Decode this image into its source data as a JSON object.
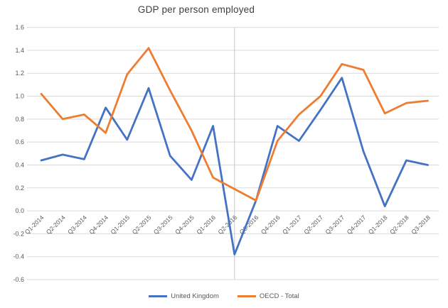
{
  "chart_data": {
    "type": "line",
    "title": "GDP per person employed",
    "categories": [
      "Q1-2014",
      "Q2-2014",
      "Q3-2014",
      "Q4-2014",
      "Q1-2015",
      "Q2-2015",
      "Q3-2015",
      "Q4-2015",
      "Q1-2016",
      "Q2-2016",
      "Q3-2016",
      "Q4-2016",
      "Q1-2017",
      "Q2-2017",
      "Q3-2017",
      "Q4-2017",
      "Q1-2018",
      "Q2-2018",
      "Q3-2018"
    ],
    "series": [
      {
        "name": "United Kingdom",
        "color": "#4472C4",
        "values": [
          0.44,
          0.49,
          0.45,
          0.9,
          0.62,
          1.07,
          0.48,
          0.27,
          0.74,
          -0.38,
          0.09,
          0.74,
          0.61,
          0.88,
          1.16,
          0.52,
          0.04,
          0.44,
          0.4
        ]
      },
      {
        "name": "OECD - Total",
        "color": "#ED7D31",
        "values": [
          1.02,
          0.8,
          0.84,
          0.68,
          1.19,
          1.42,
          1.05,
          0.7,
          0.29,
          0.19,
          0.09,
          0.61,
          0.84,
          1.0,
          1.28,
          1.23,
          0.85,
          0.94,
          0.96
        ]
      }
    ],
    "ylim": [
      -0.6,
      1.6
    ],
    "ytick_step": 0.2,
    "ytick_labels": [
      "1.6",
      "1.4",
      "1.2",
      "1.0",
      "0.8",
      "0.6",
      "0.4",
      "0.2",
      "0.0",
      "-0.2",
      "-0.4",
      "-0.6"
    ],
    "grid": "horizontal-plus-single-vertical",
    "vertical_gridline_at": "Q2-2016",
    "legend_position": "bottom",
    "colors": {
      "title_text": "#404040",
      "axis_text": "#595959",
      "gridline": "#d9d9d9",
      "background": "#ffffff"
    }
  }
}
